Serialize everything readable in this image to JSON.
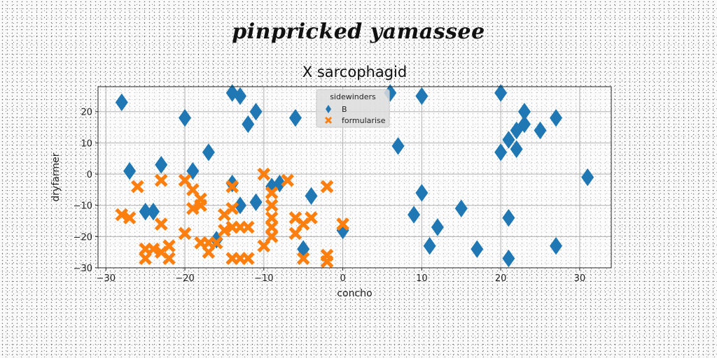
{
  "suptitle": "pinpricked yamassee",
  "chart_data": {
    "type": "scatter",
    "title": "X sarcophagid",
    "xlabel": "concho",
    "ylabel": "dryfarmer",
    "xlim": [
      -31,
      34
    ],
    "ylim": [
      -30,
      28
    ],
    "xticks": [
      -30,
      -20,
      -10,
      0,
      10,
      20,
      30
    ],
    "yticks": [
      -30,
      -20,
      -10,
      0,
      10,
      20
    ],
    "xtick_labels": [
      "−30",
      "−20",
      "−10",
      "0",
      "10",
      "20",
      "30"
    ],
    "ytick_labels": [
      "−30",
      "−20",
      "−10",
      "0",
      "10",
      "20"
    ],
    "grid": true,
    "legend": {
      "title": "sidewinders",
      "placement": "top-center"
    },
    "series": [
      {
        "name": "B",
        "marker": "diamond",
        "color": "#1f77b4",
        "points": [
          [
            -28,
            23
          ],
          [
            -27,
            1
          ],
          [
            -25,
            -12
          ],
          [
            -24,
            -12
          ],
          [
            -23,
            3
          ],
          [
            -20,
            18
          ],
          [
            -19,
            1
          ],
          [
            -17,
            7
          ],
          [
            -14,
            26
          ],
          [
            -13,
            25
          ],
          [
            -14,
            -3
          ],
          [
            -13,
            -10
          ],
          [
            -12,
            16
          ],
          [
            -11,
            20
          ],
          [
            -11,
            -9
          ],
          [
            -9,
            -4
          ],
          [
            -8,
            -3
          ],
          [
            -6,
            18
          ],
          [
            -4,
            -7
          ],
          [
            -5,
            -24
          ],
          [
            0,
            -18
          ],
          [
            6,
            26
          ],
          [
            7,
            9
          ],
          [
            9,
            -13
          ],
          [
            10,
            25
          ],
          [
            10,
            -6
          ],
          [
            11,
            -23
          ],
          [
            12,
            -17
          ],
          [
            15,
            -11
          ],
          [
            17,
            -24
          ],
          [
            20,
            26
          ],
          [
            20,
            7
          ],
          [
            21,
            11
          ],
          [
            22,
            14
          ],
          [
            22,
            8
          ],
          [
            23,
            16
          ],
          [
            23,
            20
          ],
          [
            25,
            14
          ],
          [
            27,
            18
          ],
          [
            21,
            -14
          ],
          [
            21,
            -27
          ],
          [
            27,
            -23
          ],
          [
            31,
            -1
          ],
          [
            -16,
            -21
          ]
        ]
      },
      {
        "name": "formularise",
        "marker": "x",
        "color": "#ff7f0e",
        "points": [
          [
            -28,
            -13
          ],
          [
            -27,
            -14
          ],
          [
            -26,
            -4
          ],
          [
            -25,
            -27
          ],
          [
            -25,
            -24
          ],
          [
            -24,
            -24
          ],
          [
            -23,
            -25
          ],
          [
            -23,
            -2
          ],
          [
            -23,
            -16
          ],
          [
            -22,
            -27
          ],
          [
            -22,
            -23
          ],
          [
            -20,
            -19
          ],
          [
            -20,
            -2
          ],
          [
            -19,
            -5
          ],
          [
            -19,
            -11
          ],
          [
            -18,
            -8
          ],
          [
            -18,
            -10
          ],
          [
            -17,
            -22
          ],
          [
            -18,
            -22
          ],
          [
            -17,
            -25
          ],
          [
            -16,
            -22
          ],
          [
            -15,
            -18
          ],
          [
            -15,
            -13
          ],
          [
            -14,
            -11
          ],
          [
            -14,
            -4
          ],
          [
            -14,
            -27
          ],
          [
            -13,
            -27
          ],
          [
            -13,
            -17
          ],
          [
            -12,
            -27
          ],
          [
            -14,
            -17
          ],
          [
            -12,
            -17
          ],
          [
            -10,
            0
          ],
          [
            -10,
            -23
          ],
          [
            -9,
            -10
          ],
          [
            -9,
            -6
          ],
          [
            -9,
            -14
          ],
          [
            -9,
            -17
          ],
          [
            -9,
            -20
          ],
          [
            -7,
            -2
          ],
          [
            -6,
            -14
          ],
          [
            -6,
            -19
          ],
          [
            -5,
            -16
          ],
          [
            -4,
            -14
          ],
          [
            -5,
            -27
          ],
          [
            -2,
            -4
          ],
          [
            -2,
            -26
          ],
          [
            -2,
            -28
          ],
          [
            0,
            -16
          ]
        ]
      }
    ]
  }
}
